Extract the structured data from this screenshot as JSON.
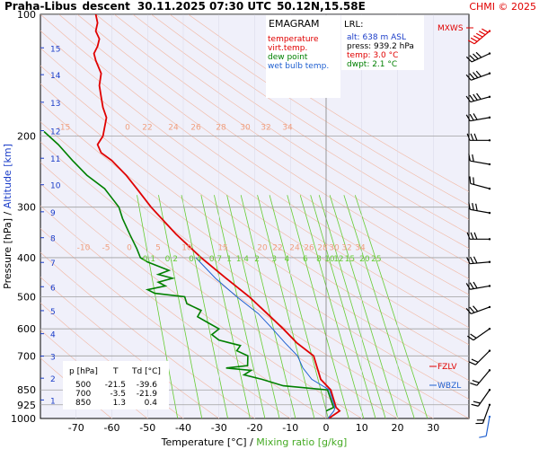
{
  "header": {
    "station": "Praha-Libus",
    "mode": "descent",
    "datetime": "30.11.2025 07:30 UTC",
    "position": "50.12N,15.58E",
    "credit": "CHMI © 2025"
  },
  "legend": {
    "title": "EMAGRAM",
    "items": [
      {
        "label": "temperature",
        "color": "#e00000"
      },
      {
        "label": "virt.temp.",
        "color": "#e00000"
      },
      {
        "label": "dew point",
        "color": "#008000"
      },
      {
        "label": "wet bulb temp.",
        "color": "#2060d0"
      }
    ]
  },
  "lrl": {
    "title": "LRL:",
    "alt": "alt: 638 m ASL",
    "press": "press: 939.2 hPa",
    "temp": "temp: 3.0 °C",
    "dwpt": "dwpt: 2.1 °C"
  },
  "table": {
    "header": [
      "p [hPa]",
      "T",
      "Td [°C]"
    ],
    "rows": [
      [
        "500",
        "-21.5",
        "-39.6"
      ],
      [
        "700",
        "-3.5",
        "-21.9"
      ],
      [
        "850",
        "1.3",
        "0.4"
      ]
    ]
  },
  "levels": {
    "mxws": "MXWS",
    "fzlv": "FZLV",
    "wbzl": "WBZL"
  },
  "axes": {
    "ylabel_left": "Pressure [hPa]",
    "ylabel_sep": " / ",
    "ylabel_right": "Altitude [km]",
    "xlabel_left": "Temperature [°C]",
    "xlabel_sep": " / ",
    "xlabel_right": "Mixing ratio [g/kg]"
  },
  "colors": {
    "temperature": "#e00000",
    "dewpoint": "#008000",
    "wetbulb": "#2060d0",
    "altitude": "#1a3cc8",
    "mixing": "#66cc33",
    "dry_adiabat": "#f2b6a0",
    "moist_label": "#f0a080",
    "isobar": "#a0a0a0",
    "plot_bg": "#f0f0fa"
  },
  "chart_data": {
    "type": "line",
    "yscale": "log",
    "xlim": [
      -80,
      40
    ],
    "ylim": [
      1000,
      100
    ],
    "x_ticks": [
      -70,
      -60,
      -50,
      -40,
      -30,
      -20,
      -10,
      0,
      10,
      20,
      30
    ],
    "y_ticks": [
      100,
      200,
      300,
      400,
      500,
      600,
      700,
      850,
      925,
      1000
    ],
    "altitude_ticks_km": [
      1,
      2,
      3,
      4,
      5,
      6,
      7,
      8,
      9,
      10,
      11,
      12,
      13,
      14,
      15
    ],
    "altitude_pressures_hpa": [
      900,
      795,
      701,
      617,
      541,
      472,
      411,
      357,
      308,
      264,
      227,
      194,
      165,
      141,
      121
    ],
    "mixing_ratio_labels": [
      "0.1",
      "0.2",
      "0.4",
      "0.7",
      "1",
      "1.4",
      "2",
      "3",
      "4",
      "6",
      "8",
      "10",
      "12",
      "15",
      "20",
      "25"
    ],
    "mixing_ratio_label_pressure_hpa": 415,
    "adiabat_labels_row1": [
      "-15",
      "0",
      "22",
      "24",
      "26",
      "28",
      "30",
      "32",
      "34"
    ],
    "adiabat_labels_row1_pressure_hpa": 193,
    "adiabat_labels_row2": [
      "-10",
      "-5",
      "0",
      "5",
      "10",
      "15",
      "20",
      "22",
      "24",
      "26",
      "28",
      "30",
      "32",
      "34"
    ],
    "adiabat_labels_row2_pressure_hpa": 383,
    "series": [
      {
        "name": "temperature",
        "points": [
          [
            0.7,
            1000
          ],
          [
            3.8,
            958
          ],
          [
            2.8,
            939
          ],
          [
            1.3,
            850
          ],
          [
            -1.5,
            800
          ],
          [
            -3.5,
            700
          ],
          [
            -8.2,
            650
          ],
          [
            -12.0,
            600
          ],
          [
            -16.5,
            550
          ],
          [
            -21.5,
            500
          ],
          [
            -28.0,
            450
          ],
          [
            -35.0,
            400
          ],
          [
            -42.0,
            350
          ],
          [
            -49.0,
            300
          ],
          [
            -53.0,
            270
          ],
          [
            -56.0,
            250
          ],
          [
            -60.0,
            230
          ],
          [
            -63.0,
            220
          ],
          [
            -64.0,
            210
          ],
          [
            -62.5,
            200
          ],
          [
            -62.0,
            190
          ],
          [
            -61.5,
            180
          ],
          [
            -62.5,
            170
          ],
          [
            -63.0,
            160
          ],
          [
            -63.5,
            150
          ],
          [
            -63.0,
            140
          ],
          [
            -64.5,
            130
          ],
          [
            -65.0,
            125
          ],
          [
            -64.0,
            120
          ],
          [
            -63.5,
            115
          ],
          [
            -64.5,
            110
          ],
          [
            -64.0,
            105
          ],
          [
            -64.5,
            100
          ]
        ]
      },
      {
        "name": "dew point",
        "points": [
          [
            0.0,
            958
          ],
          [
            2.1,
            939
          ],
          [
            0.4,
            850
          ],
          [
            -12.0,
            830
          ],
          [
            -18.0,
            800
          ],
          [
            -23.0,
            780
          ],
          [
            -21.0,
            760
          ],
          [
            -28.0,
            750
          ],
          [
            -22.0,
            740
          ],
          [
            -21.9,
            700
          ],
          [
            -25.0,
            680
          ],
          [
            -24.0,
            660
          ],
          [
            -30.0,
            640
          ],
          [
            -32.0,
            620
          ],
          [
            -30.0,
            600
          ],
          [
            -33.0,
            580
          ],
          [
            -36.0,
            560
          ],
          [
            -35.0,
            540
          ],
          [
            -39.0,
            520
          ],
          [
            -39.6,
            500
          ],
          [
            -48.0,
            490
          ],
          [
            -50.0,
            480
          ],
          [
            -45.0,
            470
          ],
          [
            -47.0,
            460
          ],
          [
            -43.0,
            450
          ],
          [
            -47.0,
            440
          ],
          [
            -44.0,
            430
          ],
          [
            -50.0,
            410
          ],
          [
            -52.0,
            400
          ],
          [
            -53.0,
            380
          ],
          [
            -55.0,
            350
          ],
          [
            -57.0,
            320
          ],
          [
            -58.0,
            300
          ],
          [
            -62.0,
            270
          ],
          [
            -67.0,
            250
          ],
          [
            -71.0,
            230
          ],
          [
            -75.0,
            210
          ],
          [
            -79.0,
            195
          ]
        ]
      },
      {
        "name": "wet bulb temp.",
        "points": [
          [
            0.5,
            1000
          ],
          [
            2.2,
            958
          ],
          [
            2.5,
            939
          ],
          [
            0.9,
            850
          ],
          [
            -4.0,
            800
          ],
          [
            -6.5,
            750
          ],
          [
            -8.0,
            700
          ],
          [
            -11.5,
            650
          ],
          [
            -15.0,
            600
          ],
          [
            -19.0,
            550
          ],
          [
            -25.0,
            500
          ],
          [
            -31.0,
            450
          ],
          [
            -36.5,
            400
          ]
        ]
      }
    ]
  },
  "wind_barbs": [
    {
      "p": 110,
      "dir": 230,
      "speed": 60
    },
    {
      "p": 125,
      "dir": 245,
      "speed": 40
    },
    {
      "p": 140,
      "dir": 250,
      "speed": 35
    },
    {
      "p": 160,
      "dir": 255,
      "speed": 35
    },
    {
      "p": 180,
      "dir": 260,
      "speed": 30
    },
    {
      "p": 205,
      "dir": 270,
      "speed": 25
    },
    {
      "p": 235,
      "dir": 280,
      "speed": 20
    },
    {
      "p": 270,
      "dir": 285,
      "speed": 20
    },
    {
      "p": 310,
      "dir": 280,
      "speed": 25
    },
    {
      "p": 360,
      "dir": 270,
      "speed": 25
    },
    {
      "p": 410,
      "dir": 265,
      "speed": 25
    },
    {
      "p": 470,
      "dir": 260,
      "speed": 25
    },
    {
      "p": 530,
      "dir": 250,
      "speed": 25
    },
    {
      "p": 600,
      "dir": 235,
      "speed": 20
    },
    {
      "p": 680,
      "dir": 225,
      "speed": 20
    },
    {
      "p": 760,
      "dir": 220,
      "speed": 15
    },
    {
      "p": 850,
      "dir": 215,
      "speed": 15
    },
    {
      "p": 925,
      "dir": 200,
      "speed": 15
    },
    {
      "p": 990,
      "dir": 190,
      "speed": 10
    }
  ]
}
